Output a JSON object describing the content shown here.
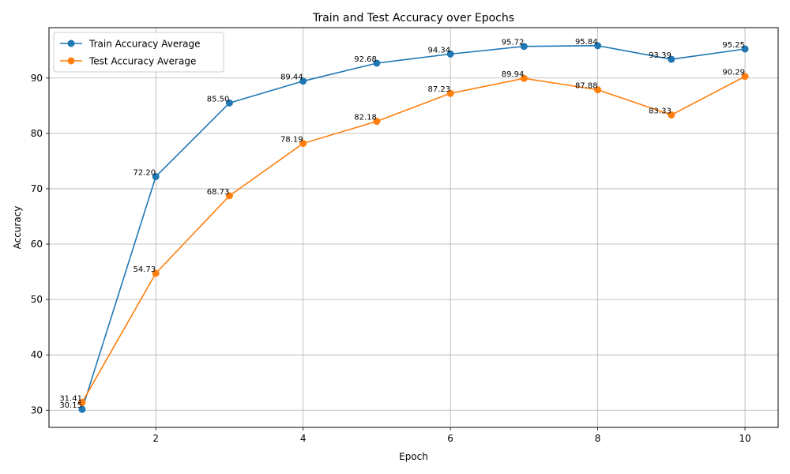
{
  "chart_data": {
    "type": "line",
    "title": "Train and Test Accuracy over Epochs",
    "xlabel": "Epoch",
    "ylabel": "Accuracy",
    "x": [
      1,
      2,
      3,
      4,
      5,
      6,
      7,
      8,
      9,
      10
    ],
    "xlim": [
      0.55,
      10.45
    ],
    "ylim": [
      26.9,
      99.1
    ],
    "xticks": [
      2,
      4,
      6,
      8,
      10
    ],
    "yticks": [
      30,
      40,
      50,
      60,
      70,
      80,
      90
    ],
    "grid": true,
    "legend_position": "top-left",
    "series": [
      {
        "name": "Train Accuracy Average",
        "color": "#1f77b4",
        "values": [
          30.15,
          72.2,
          85.5,
          89.44,
          92.68,
          94.34,
          95.72,
          95.84,
          93.39,
          95.25
        ],
        "labels": [
          "30.15",
          "72.20",
          "85.50",
          "89.44",
          "92.68",
          "94.34",
          "95.72",
          "95.84",
          "93.39",
          "95.25"
        ]
      },
      {
        "name": "Test Accuracy Average",
        "color": "#ff7f0e",
        "values": [
          31.41,
          54.73,
          68.73,
          78.19,
          82.18,
          87.23,
          89.94,
          87.88,
          83.33,
          90.29
        ],
        "labels": [
          "31.41",
          "54.73",
          "68.73",
          "78.19",
          "82.18",
          "87.23",
          "89.94",
          "87.88",
          "83.33",
          "90.29"
        ]
      }
    ]
  }
}
